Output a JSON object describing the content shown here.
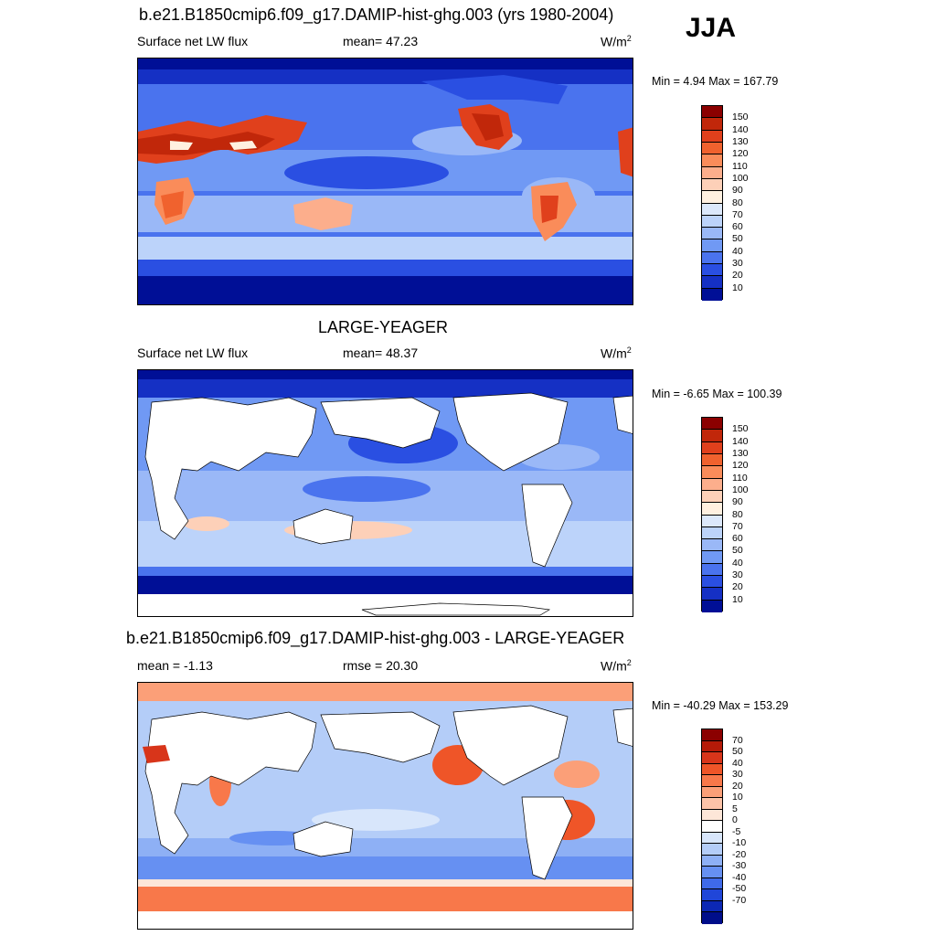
{
  "season": "JJA",
  "panels": [
    {
      "title": "b.e21.B1850cmip6.f09_g17.DAMIP-hist-ghg.003 (yrs 1980-2004)",
      "left_label": "Surface net LW flux",
      "stat_label": "mean=  47.23",
      "units": "W/m",
      "units_sup": "2",
      "minmax": "Min =   4.94 Max = 167.79",
      "colorbar": {
        "colors": [
          "#8b0000",
          "#c1270a",
          "#e0401c",
          "#f0622e",
          "#fa8c5a",
          "#fcae8c",
          "#fdd0b8",
          "#fff0e0",
          "#dce8fb",
          "#bcd3fa",
          "#9ab8f7",
          "#7099f4",
          "#4a73ee",
          "#2a4fe2",
          "#1530c4",
          "#000f96"
        ],
        "labels": [
          "150",
          "140",
          "130",
          "120",
          "110",
          "100",
          "90",
          "80",
          "70",
          "60",
          "50",
          "40",
          "30",
          "20",
          "10"
        ]
      }
    },
    {
      "title": "LARGE-YEAGER",
      "left_label": "Surface net LW flux",
      "stat_label": "mean=  48.37",
      "units": "W/m",
      "units_sup": "2",
      "minmax": "Min =  -6.65 Max = 100.39",
      "colorbar": {
        "colors": [
          "#8b0000",
          "#c1270a",
          "#e0401c",
          "#f0622e",
          "#fa8c5a",
          "#fcae8c",
          "#fdd0b8",
          "#fff0e0",
          "#dce8fb",
          "#bcd3fa",
          "#9ab8f7",
          "#7099f4",
          "#4a73ee",
          "#2a4fe2",
          "#1530c4",
          "#000f96"
        ],
        "labels": [
          "150",
          "140",
          "130",
          "120",
          "110",
          "100",
          "90",
          "80",
          "70",
          "60",
          "50",
          "40",
          "30",
          "20",
          "10"
        ]
      }
    },
    {
      "title": "b.e21.B1850cmip6.f09_g17.DAMIP-hist-ghg.003 - LARGE-YEAGER",
      "left_label": "mean =  -1.13",
      "stat_label": "rmse =  20.30",
      "units": "W/m",
      "units_sup": "2",
      "minmax": "Min = -40.29 Max = 153.29",
      "colorbar": {
        "colors": [
          "#8b0000",
          "#b51a08",
          "#d8351a",
          "#ef5528",
          "#f8784a",
          "#fb9f78",
          "#fdc3a8",
          "#fde6d8",
          "#ffffff",
          "#d8e6fb",
          "#b4cdf8",
          "#8eb0f5",
          "#6690f2",
          "#3f6ae9",
          "#2046d8",
          "#0c28b4",
          "#000e8a"
        ],
        "labels": [
          "70",
          "50",
          "40",
          "30",
          "20",
          "10",
          "5",
          "0",
          "-5",
          "-10",
          "-20",
          "-30",
          "-40",
          "-50",
          "-70"
        ]
      }
    }
  ]
}
